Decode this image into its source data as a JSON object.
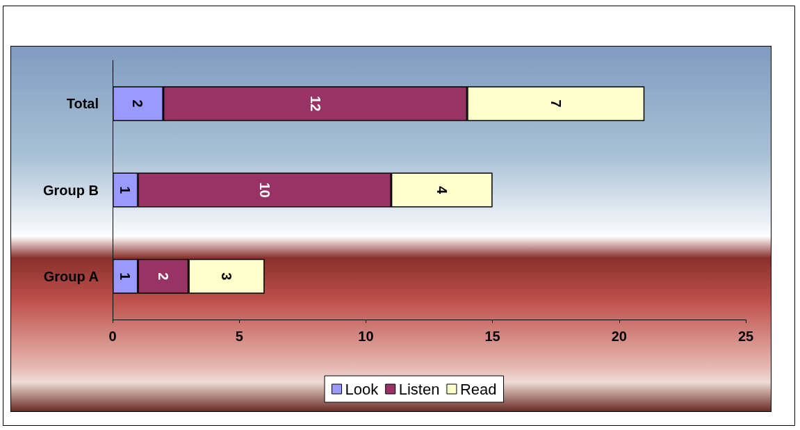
{
  "chart_data": {
    "type": "bar",
    "orientation": "horizontal",
    "stacked": true,
    "categories": [
      "Total",
      "Group B",
      "Group A"
    ],
    "series": [
      {
        "name": "Look",
        "color": "#9999ff",
        "values": [
          2,
          1,
          1
        ]
      },
      {
        "name": "Listen",
        "color": "#993366",
        "values": [
          12,
          10,
          2
        ]
      },
      {
        "name": "Read",
        "color": "#ffffcc",
        "values": [
          7,
          4,
          3
        ]
      }
    ],
    "xlim": [
      0,
      25
    ],
    "xticks": [
      0,
      5,
      10,
      15,
      20,
      25
    ],
    "grid": false,
    "legend": "bottom",
    "data_labels": true
  }
}
